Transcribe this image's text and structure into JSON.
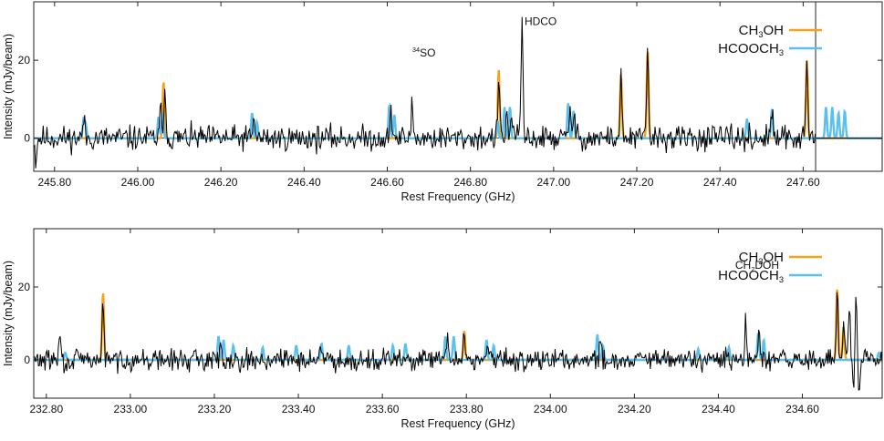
{
  "colors": {
    "ch3oh": "#f7a21b",
    "hcooch3": "#5bc0ee",
    "observed": "#000000"
  },
  "chart_data": [
    {
      "type": "line",
      "title": "",
      "xlabel": "Rest Frequency (GHz)",
      "ylabel": "Intensity (mJy/beam)",
      "xlim": [
        245.75,
        247.79
      ],
      "ylim": [
        -8.5,
        35
      ],
      "xticks": [
        245.8,
        246.0,
        246.2,
        246.4,
        246.6,
        246.8,
        247.0,
        247.2,
        247.4,
        247.6
      ],
      "xtick_labels": [
        "245.80",
        "246.00",
        "246.20",
        "246.40",
        "246.60",
        "246.80",
        "247.00",
        "247.20",
        "247.40",
        "247.60"
      ],
      "yticks": [
        0,
        20
      ],
      "ytick_labels": [
        "0",
        "20"
      ],
      "vline": 247.63,
      "legend": {
        "position": "top-right",
        "entries": [
          {
            "pre": "CH",
            "sub": "3",
            "post": "OH",
            "series": "ch3oh"
          },
          {
            "pre": "HCOOCH",
            "sub": "3",
            "post": "",
            "series": "hcooch3"
          }
        ]
      },
      "annotations": [
        {
          "sup": "34",
          "text": "SO",
          "x": 246.66,
          "y": 5
        },
        {
          "text": "HDCO",
          "x": 246.93,
          "y": 13
        }
      ],
      "series": [
        {
          "name": "CH3OH",
          "key": "ch3oh",
          "width": 0.0045,
          "lines": [
            {
              "x": 246.062,
              "y": 14.5
            },
            {
              "x": 246.868,
              "y": 17.5
            },
            {
              "x": 247.162,
              "y": 16.0
            },
            {
              "x": 247.226,
              "y": 22.5
            },
            {
              "x": 247.609,
              "y": 20.0
            }
          ]
        },
        {
          "name": "HCOOCH3",
          "key": "hcooch3",
          "width": 0.0045,
          "lines": [
            {
              "x": 245.87,
              "y": 5.0
            },
            {
              "x": 245.875,
              "y": 3.5
            },
            {
              "x": 246.05,
              "y": 5.5
            },
            {
              "x": 246.06,
              "y": 6.5
            },
            {
              "x": 246.275,
              "y": 6.5
            },
            {
              "x": 246.287,
              "y": 4.0
            },
            {
              "x": 246.605,
              "y": 8.5
            },
            {
              "x": 246.617,
              "y": 6.0
            },
            {
              "x": 246.865,
              "y": 4.5
            },
            {
              "x": 246.882,
              "y": 8.0
            },
            {
              "x": 246.895,
              "y": 8.0
            },
            {
              "x": 247.035,
              "y": 9.0
            },
            {
              "x": 247.048,
              "y": 7.0
            },
            {
              "x": 247.465,
              "y": 5.0
            },
            {
              "x": 247.525,
              "y": 7.5
            },
            {
              "x": 247.655,
              "y": 8.0
            },
            {
              "x": 247.67,
              "y": 8.0
            },
            {
              "x": 247.685,
              "y": 6.5
            },
            {
              "x": 247.7,
              "y": 7.0
            }
          ]
        },
        {
          "name": "Observed",
          "key": "observed",
          "noise": 2.0,
          "seed": 11,
          "cutoff": 247.63,
          "lines": [
            {
              "x": 245.87,
              "y": 5.0
            },
            {
              "x": 246.055,
              "y": 7.0
            },
            {
              "x": 246.065,
              "y": 15.0
            },
            {
              "x": 246.28,
              "y": 6.0
            },
            {
              "x": 246.61,
              "y": 7.0
            },
            {
              "x": 246.66,
              "y": 9.0
            },
            {
              "x": 246.868,
              "y": 16.0
            },
            {
              "x": 246.888,
              "y": 7.0
            },
            {
              "x": 246.9,
              "y": 6.5
            },
            {
              "x": 246.924,
              "y": 31.0
            },
            {
              "x": 247.04,
              "y": 9.5
            },
            {
              "x": 247.05,
              "y": 6.0
            },
            {
              "x": 247.162,
              "y": 15.0
            },
            {
              "x": 247.226,
              "y": 23.5
            },
            {
              "x": 247.525,
              "y": 7.0
            },
            {
              "x": 247.609,
              "y": 19.5
            }
          ],
          "bumps": [
            {
              "x": 245.755,
              "y": -6.0
            }
          ]
        }
      ]
    },
    {
      "type": "line",
      "title": "",
      "xlabel": "Rest Frequency (GHz)",
      "ylabel": "Intensity (mJy/beam)",
      "xlim": [
        232.77,
        234.79
      ],
      "ylim": [
        -10.5,
        36
      ],
      "xticks": [
        232.8,
        233.0,
        233.2,
        233.4,
        233.6,
        233.8,
        234.0,
        234.2,
        234.4,
        234.6
      ],
      "xtick_labels": [
        "232.80",
        "233.00",
        "233.20",
        "233.40",
        "233.60",
        "233.80",
        "234.00",
        "234.20",
        "234.40",
        "234.60"
      ],
      "yticks": [
        0,
        20
      ],
      "ytick_labels": [
        "0",
        "20"
      ],
      "legend": {
        "position": "top-right",
        "entries": [
          {
            "pre": "CH",
            "sub": "3",
            "post": "OH",
            "series": "ch3oh"
          },
          {
            "pre": "HCOOCH",
            "sub": "3",
            "post": "",
            "series": "hcooch3"
          }
        ]
      },
      "annotations": [
        {
          "pre": "CH",
          "sub": "2",
          "text": "DOH",
          "x": 234.44,
          "y": 9
        }
      ],
      "series": [
        {
          "name": "CH3OH",
          "key": "ch3oh",
          "width": 0.0045,
          "lines": [
            {
              "x": 232.935,
              "y": 18.5
            },
            {
              "x": 233.795,
              "y": 8.0
            },
            {
              "x": 234.683,
              "y": 19.5
            },
            {
              "x": 234.698,
              "y": 9.0
            }
          ]
        },
        {
          "name": "HCOOCH3",
          "key": "hcooch3",
          "width": 0.0045,
          "lines": [
            {
              "x": 232.845,
              "y": 2.0
            },
            {
              "x": 233.21,
              "y": 6.5
            },
            {
              "x": 233.222,
              "y": 5.5
            },
            {
              "x": 233.245,
              "y": 4.0
            },
            {
              "x": 233.315,
              "y": 3.5
            },
            {
              "x": 233.395,
              "y": 4.0
            },
            {
              "x": 233.455,
              "y": 4.5
            },
            {
              "x": 233.52,
              "y": 4.0
            },
            {
              "x": 233.625,
              "y": 4.0
            },
            {
              "x": 233.655,
              "y": 4.5
            },
            {
              "x": 233.75,
              "y": 6.5
            },
            {
              "x": 233.77,
              "y": 6.5
            },
            {
              "x": 233.848,
              "y": 5.5
            },
            {
              "x": 233.865,
              "y": 4.0
            },
            {
              "x": 234.112,
              "y": 7.0
            },
            {
              "x": 234.125,
              "y": 4.0
            },
            {
              "x": 234.352,
              "y": 3.0
            },
            {
              "x": 234.425,
              "y": 3.5
            },
            {
              "x": 234.495,
              "y": 7.5
            },
            {
              "x": 234.508,
              "y": 5.5
            },
            {
              "x": 234.782,
              "y": 2.0
            }
          ]
        },
        {
          "name": "Observed",
          "key": "observed",
          "noise": 1.8,
          "seed": 29,
          "cutoff": 234.79,
          "lines": [
            {
              "x": 232.832,
              "y": 7.0
            },
            {
              "x": 232.935,
              "y": 15.5
            },
            {
              "x": 233.215,
              "y": 6.0
            },
            {
              "x": 233.452,
              "y": 5.0
            },
            {
              "x": 233.755,
              "y": 5.5
            },
            {
              "x": 233.795,
              "y": 8.5
            },
            {
              "x": 233.852,
              "y": 4.5
            },
            {
              "x": 234.118,
              "y": 5.0
            },
            {
              "x": 234.465,
              "y": 9.5
            },
            {
              "x": 234.497,
              "y": 6.5
            },
            {
              "x": 234.683,
              "y": 20.0
            },
            {
              "x": 234.698,
              "y": 8.0
            },
            {
              "x": 234.712,
              "y": 15.0
            },
            {
              "x": 234.722,
              "y": -8.0
            },
            {
              "x": 234.728,
              "y": 17.0
            },
            {
              "x": 234.735,
              "y": -9.0
            }
          ],
          "bumps": [
            {
              "x": 232.845,
              "y": -4.0
            }
          ]
        }
      ]
    }
  ]
}
